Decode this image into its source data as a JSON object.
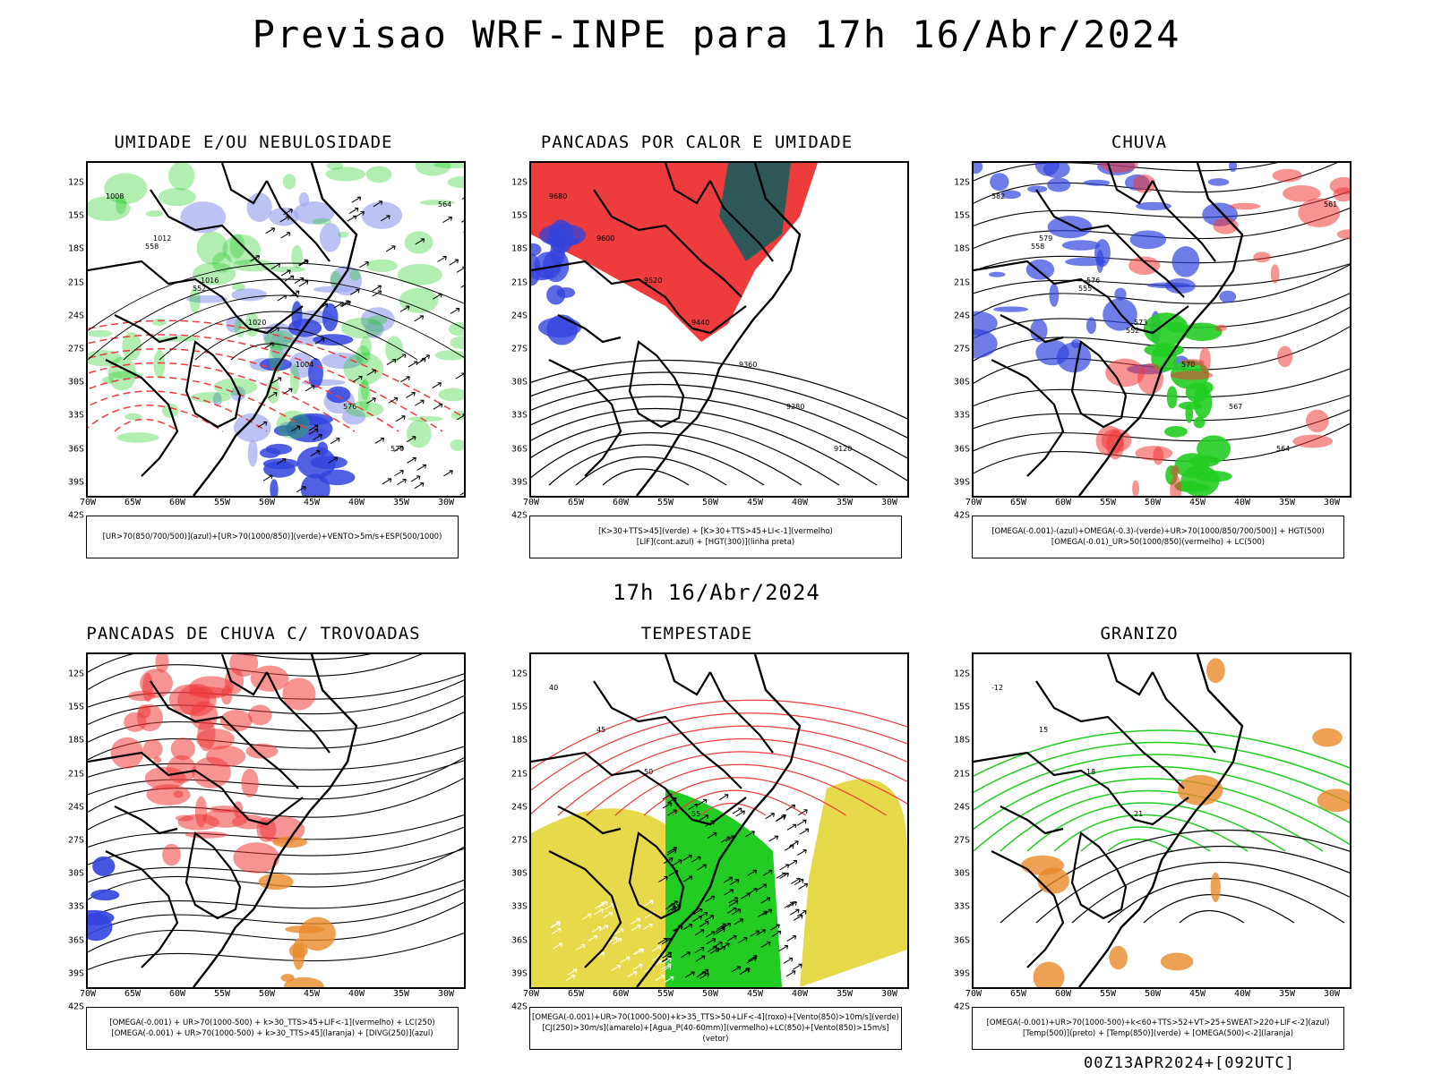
{
  "main_title": "Previsao WRF-INPE  para 17h 16/Abr/2024",
  "mid_time": "17h 16/Abr/2024",
  "footer": "00Z13APR2024+[092UTC]",
  "lat_ticks": [
    "12S",
    "15S",
    "18S",
    "21S",
    "24S",
    "27S",
    "30S",
    "33S",
    "36S",
    "39S",
    "42S"
  ],
  "lon_ticks": [
    "70W",
    "65W",
    "60W",
    "55W",
    "50W",
    "45W",
    "40W",
    "35W",
    "30W"
  ],
  "colors": {
    "red": "#ee3b3b",
    "green": "#22cc22",
    "blue": "#3344dd",
    "lightblue": "#a0a8f0",
    "yellow": "#e6d94a",
    "darkteal": "#2f5858",
    "orange": "#e88a2a"
  },
  "panels": [
    {
      "title": "UMIDADE E/OU NEBULOSIDADE",
      "legend_lines": [
        "[UR>70(850/700/500)](azul)+[UR>70(1000/850)](verde)+VENTO>5m/s+ESP(500/1000)"
      ],
      "contour_labels": [
        "1008",
        "1012",
        "1016",
        "1020",
        "1004",
        "576",
        "570",
        "564",
        "558",
        "552"
      ]
    },
    {
      "title": "PANCADAS POR CALOR E UMIDADE",
      "legend_lines": [
        "[K>30+TTS>45](verde) + [K>30+TTS>45+LI<-1](vermelho)",
        "[LIF](cont.azul) + [HGT(300)](linha preta)"
      ],
      "contour_labels": [
        "9680",
        "9600",
        "9520",
        "9440",
        "9360",
        "9280",
        "9120"
      ]
    },
    {
      "title": "CHUVA",
      "legend_lines": [
        "[OMEGA(-0.001)-(azul)+OMEGA(-0.3)-(verde)+UR>70(1000/850/700/500)] + HGT(500)",
        "[OMEGA(-0.01)_UR>50(1000/850)(vermelho) + LC(500)"
      ],
      "contour_labels": [
        "582",
        "579",
        "576",
        "573",
        "570",
        "567",
        "564",
        "561",
        "558",
        "555",
        "552"
      ]
    },
    {
      "title": "PANCADAS DE CHUVA C/ TROVOADAS",
      "legend_lines": [
        "[OMEGA(-0.001) + UR>70(1000-500) + k>30_TTS>45+LIF<-1](vermelho) + LC(250)",
        "[OMEGA(-0.001) + UR>70(1000-500) + k>30_TTS>45](laranja) + [DIVG(250)](azul)"
      ],
      "contour_labels": []
    },
    {
      "title": "TEMPESTADE",
      "legend_lines": [
        "[OMEGA(-0.001)+UR>70(1000-500)+k>35_TTS>50+LIF<-4](roxo)+[Vento(850)>10m/s](verde)",
        "[CJ(250)>30m/s](amarelo)+[Agua_P(40-60mm)](vermelho)+LC(850)+[Vento(850)>15m/s](vetor)"
      ],
      "contour_labels": [
        "40",
        "45",
        "50",
        "55"
      ]
    },
    {
      "title": "GRANIZO",
      "legend_lines": [
        "[OMEGA(-0.001)+UR>70(1000-500)+k<60+TTS>52+VT>25+SWEAT>220+LIF<-2](azul)",
        "[Temp(500)](preto) + [Temp(850)](verde) + [OMEGA(500)<-2](laranja)"
      ],
      "contour_labels": [
        "-12",
        "15",
        "18",
        "21"
      ]
    }
  ]
}
